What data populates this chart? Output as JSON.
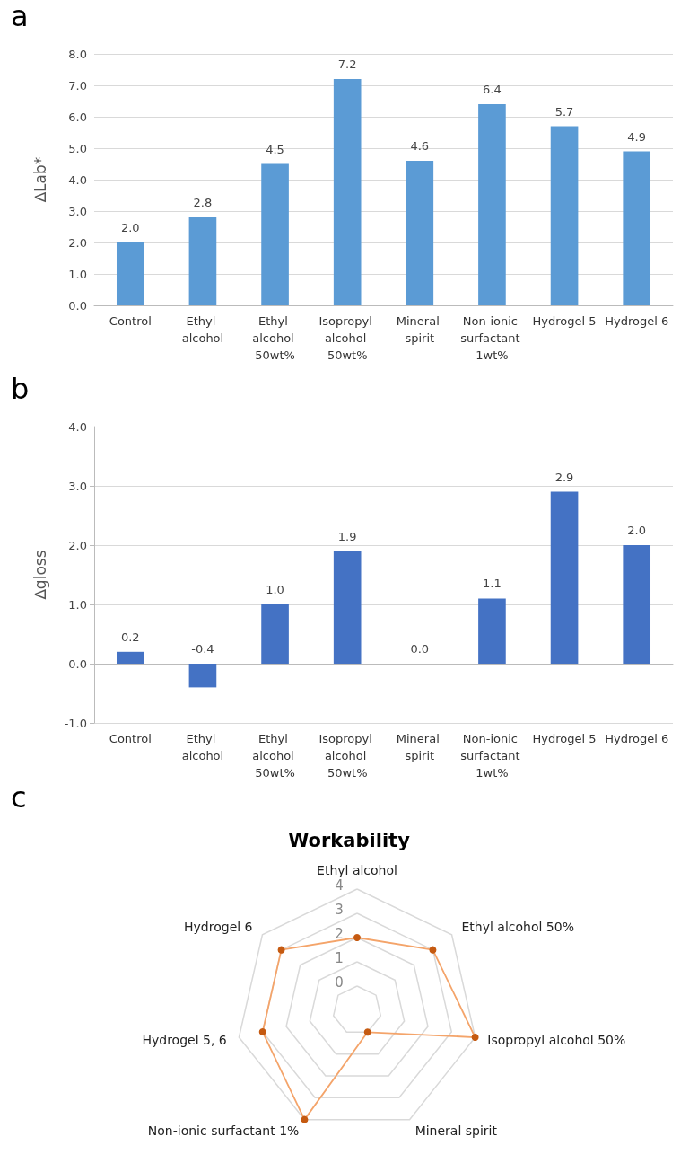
{
  "chart_data": [
    {
      "type": "bar",
      "annotations": [
        "a"
      ],
      "ylabel": "∆Lab*",
      "categories": [
        "Control",
        "Ethyl alcohol",
        "Ethyl alcohol 50wt%",
        "Isopropyl alcohol 50wt%",
        "Mineral spirit",
        "Non-ionic surfactant 1wt%",
        "Hydrogel 5",
        "Hydrogel 6"
      ],
      "values": [
        2.0,
        2.8,
        4.5,
        7.2,
        4.6,
        6.4,
        5.7,
        4.9
      ],
      "value_labels": [
        "2.0",
        "2.8",
        "4.5",
        "7.2",
        "4.6",
        "6.4",
        "5.7",
        "4.9"
      ],
      "color": "#5b9bd5",
      "ylim": [
        0,
        8
      ],
      "yticks": [
        {
          "value": 0,
          "label": "0.0"
        },
        {
          "value": 1,
          "label": "1.0"
        },
        {
          "value": 2,
          "label": "2.0"
        },
        {
          "value": 3,
          "label": "3.0"
        },
        {
          "value": 4,
          "label": "4.0"
        },
        {
          "value": 5,
          "label": "5.0"
        },
        {
          "value": 6,
          "label": "6.0"
        },
        {
          "value": 7,
          "label": "7.0"
        },
        {
          "value": 8,
          "label": "8.0"
        }
      ],
      "grid": "y"
    },
    {
      "type": "bar",
      "annotations": [
        "b"
      ],
      "ylabel": "∆gloss",
      "categories": [
        "Control",
        "Ethyl alcohol",
        "Ethyl alcohol 50wt%",
        "Isopropyl alcohol 50wt%",
        "Mineral spirit",
        "Non-ionic surfactant 1wt%",
        "Hydrogel 5",
        "Hydrogel 6"
      ],
      "values": [
        0.2,
        -0.4,
        1.0,
        1.9,
        0.0,
        1.1,
        2.9,
        2.0
      ],
      "value_labels": [
        "0.2",
        "-0.4",
        "1.0",
        "1.9",
        "0.0",
        "1.1",
        "2.9",
        "2.0"
      ],
      "color": "#4472c4",
      "ylim": [
        -1,
        4
      ],
      "yticks": [
        {
          "value": -1,
          "label": "-1.0"
        },
        {
          "value": 0,
          "label": "0.0"
        },
        {
          "value": 1,
          "label": "1.0"
        },
        {
          "value": 2,
          "label": "2.0"
        },
        {
          "value": 3,
          "label": "3.0"
        },
        {
          "value": 4,
          "label": "4.0"
        }
      ],
      "grid": "y"
    },
    {
      "type": "radar",
      "annotations": [
        "c"
      ],
      "title": "Workability",
      "categories": [
        "Ethyl alcohol",
        "Ethyl alcohol 50%",
        "Isopropyl alcohol 50%",
        "Mineral spirit",
        "Non-ionic surfactant 1%",
        "Hydrogel 5, 6",
        "Hydrogel 6"
      ],
      "series": [
        {
          "color": "#f4a46a",
          "values": [
            2,
            3,
            4,
            0,
            4,
            3,
            3
          ]
        }
      ],
      "marker": "circle",
      "ylim": [
        -1,
        4
      ],
      "yticks": [
        0,
        1,
        2,
        3,
        4
      ],
      "grid": true
    }
  ]
}
